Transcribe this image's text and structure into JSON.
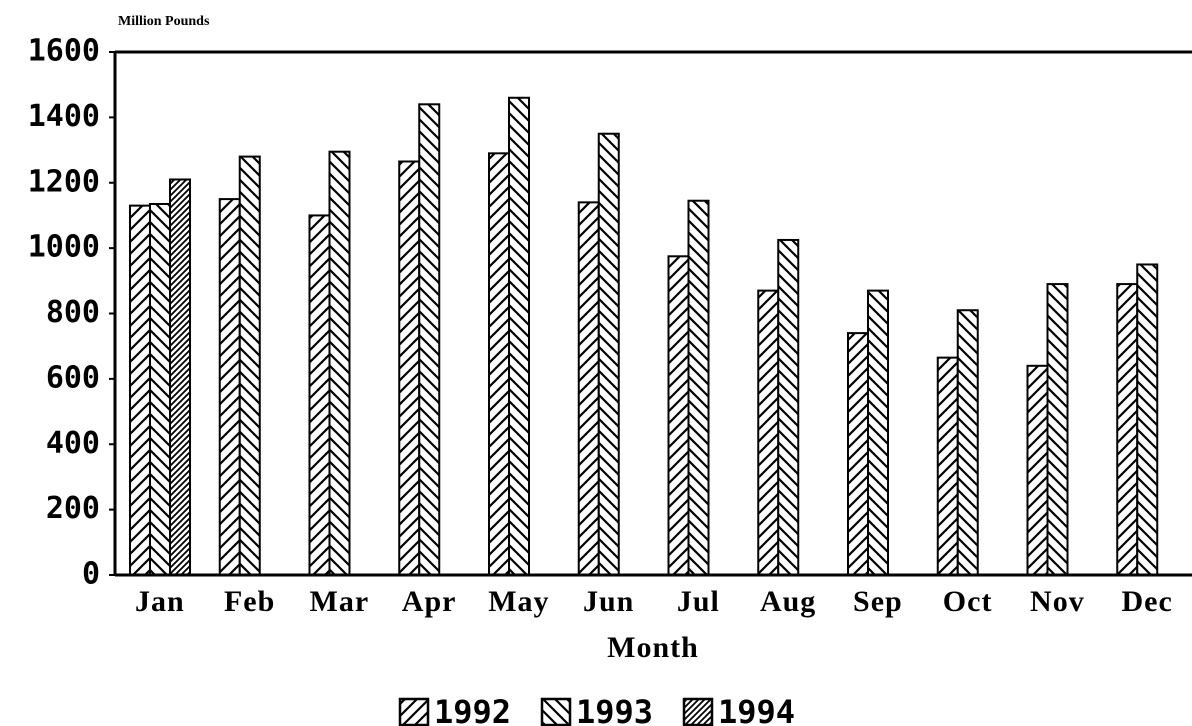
{
  "chart_data": {
    "type": "bar",
    "y_axis_label": "Million Pounds",
    "x_axis_label": "Month",
    "categories": [
      "Jan",
      "Feb",
      "Mar",
      "Apr",
      "May",
      "Jun",
      "Jul",
      "Aug",
      "Sep",
      "Oct",
      "Nov",
      "Dec"
    ],
    "series": [
      {
        "name": "1992",
        "color": "#000000",
        "values": [
          1130,
          1150,
          1100,
          1265,
          1290,
          1140,
          975,
          870,
          740,
          665,
          640,
          890
        ]
      },
      {
        "name": "1993",
        "color": "#000000",
        "values": [
          1135,
          1280,
          1295,
          1440,
          1460,
          1350,
          1145,
          1025,
          870,
          810,
          890,
          950
        ]
      },
      {
        "name": "1994",
        "color": "#000000",
        "values": [
          1210,
          null,
          null,
          null,
          null,
          null,
          null,
          null,
          null,
          null,
          null,
          null
        ]
      }
    ],
    "ylim": [
      0,
      1600
    ],
    "yticks": [
      0,
      200,
      400,
      600,
      800,
      1000,
      1200,
      1400,
      1600
    ],
    "legend": "bottom"
  }
}
